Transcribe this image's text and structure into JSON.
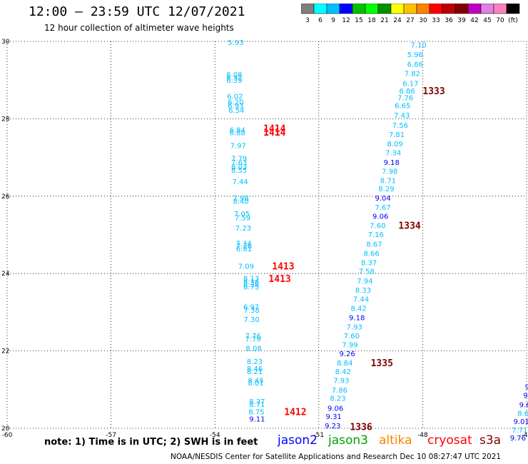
{
  "header": {
    "title": "12:00 – 23:59 UTC 12/07/2021",
    "subtitle": "12 hour collection of altimeter wave heights"
  },
  "legend": {
    "colors": [
      "#808080",
      "#00ffff",
      "#00bfff",
      "#0000ff",
      "#00c000",
      "#00ff00",
      "#009000",
      "#ffff00",
      "#ffc000",
      "#ff8000",
      "#ff0000",
      "#c00000",
      "#800000",
      "#c000c0",
      "#e080e0",
      "#ff80c0",
      "#000000"
    ],
    "labels": [
      "3",
      "6",
      "9",
      "12",
      "15",
      "18",
      "21",
      "24",
      "27",
      "30",
      "33",
      "36",
      "39",
      "42",
      "45",
      "70",
      "(ft)"
    ]
  },
  "map": {
    "x_ticks": [
      "-60",
      "-57",
      "-54",
      "-51",
      "-48",
      "-45"
    ],
    "y_ticks": [
      "30",
      "28",
      "26",
      "24",
      "22",
      "20"
    ],
    "xlim": [
      -60,
      -45
    ],
    "ylim": [
      20,
      30
    ]
  },
  "tracks": [
    {
      "points": [
        {
          "lon": -53.4,
          "lat": 29.98,
          "v": "5.93",
          "c": "#00bfff"
        },
        {
          "lon": -53.44,
          "lat": 29.15,
          "v": "6.08",
          "c": "#00bfff"
        },
        {
          "lon": -53.44,
          "lat": 29.07,
          "v": "6.37",
          "c": "#00bfff"
        },
        {
          "lon": -53.44,
          "lat": 29.0,
          "v": "6.39",
          "c": "#00bfff"
        },
        {
          "lon": -53.42,
          "lat": 28.59,
          "v": "6.02",
          "c": "#00bfff"
        },
        {
          "lon": -53.4,
          "lat": 28.44,
          "v": "6.20",
          "c": "#00bfff"
        },
        {
          "lon": -53.4,
          "lat": 28.35,
          "v": "6.93",
          "c": "#00bfff"
        },
        {
          "lon": -53.38,
          "lat": 28.23,
          "v": "6.54",
          "c": "#00bfff"
        },
        {
          "lon": -53.35,
          "lat": 27.72,
          "v": "6.84",
          "c": "#00bfff"
        },
        {
          "lon": -53.35,
          "lat": 27.65,
          "v": "6.88",
          "c": "#00bfff"
        },
        {
          "lon": -53.33,
          "lat": 27.32,
          "v": "7.97",
          "c": "#00bfff"
        },
        {
          "lon": -53.3,
          "lat": 26.98,
          "v": "7.79",
          "c": "#00bfff"
        },
        {
          "lon": -53.3,
          "lat": 26.88,
          "v": "7.63",
          "c": "#00bfff"
        },
        {
          "lon": -53.3,
          "lat": 26.77,
          "v": "8.03",
          "c": "#00bfff"
        },
        {
          "lon": -53.3,
          "lat": 26.68,
          "v": "8.55",
          "c": "#00bfff"
        },
        {
          "lon": -53.27,
          "lat": 26.38,
          "v": "7.44",
          "c": "#00bfff"
        },
        {
          "lon": -53.25,
          "lat": 25.96,
          "v": "7.98",
          "c": "#00bfff"
        },
        {
          "lon": -53.25,
          "lat": 25.88,
          "v": "8.40",
          "c": "#00bfff"
        },
        {
          "lon": -53.22,
          "lat": 25.55,
          "v": "7.05",
          "c": "#00bfff"
        },
        {
          "lon": -53.2,
          "lat": 25.45,
          "v": "7.59",
          "c": "#00bfff"
        },
        {
          "lon": -53.18,
          "lat": 25.18,
          "v": "7.23",
          "c": "#00bfff"
        },
        {
          "lon": -53.17,
          "lat": 24.79,
          "v": "7.34",
          "c": "#00bfff"
        },
        {
          "lon": -53.16,
          "lat": 24.72,
          "v": "7.26",
          "c": "#00bfff"
        },
        {
          "lon": -53.16,
          "lat": 24.65,
          "v": "6.81",
          "c": "#00bfff"
        },
        {
          "lon": -53.1,
          "lat": 24.2,
          "v": "7.09",
          "c": "#00bfff"
        },
        {
          "lon": -52.95,
          "lat": 23.88,
          "v": "8.13",
          "c": "#00bfff"
        },
        {
          "lon": -52.95,
          "lat": 23.79,
          "v": "8.36",
          "c": "#00bfff"
        },
        {
          "lon": -52.95,
          "lat": 23.73,
          "v": "8.38",
          "c": "#00bfff"
        },
        {
          "lon": -52.95,
          "lat": 23.66,
          "v": "6.75",
          "c": "#00bfff"
        },
        {
          "lon": -52.95,
          "lat": 23.15,
          "v": "6.97",
          "c": "#00bfff"
        },
        {
          "lon": -52.94,
          "lat": 23.06,
          "v": "7.38",
          "c": "#00bfff"
        },
        {
          "lon": -52.94,
          "lat": 22.82,
          "v": "7.30",
          "c": "#00bfff"
        },
        {
          "lon": -52.9,
          "lat": 22.4,
          "v": "7.76",
          "c": "#00bfff"
        },
        {
          "lon": -52.9,
          "lat": 22.32,
          "v": "7.79",
          "c": "#00bfff"
        },
        {
          "lon": -52.88,
          "lat": 22.08,
          "v": "8.08",
          "c": "#00bfff"
        },
        {
          "lon": -52.85,
          "lat": 21.73,
          "v": "8.23",
          "c": "#00bfff"
        },
        {
          "lon": -52.85,
          "lat": 21.55,
          "v": "8.46",
          "c": "#00bfff"
        },
        {
          "lon": -52.85,
          "lat": 21.48,
          "v": "8.21",
          "c": "#00bfff"
        },
        {
          "lon": -52.82,
          "lat": 21.25,
          "v": "8.45",
          "c": "#00bfff"
        },
        {
          "lon": -52.82,
          "lat": 21.18,
          "v": "8.01",
          "c": "#00bfff"
        },
        {
          "lon": -52.78,
          "lat": 20.7,
          "v": "8.37",
          "c": "#00bfff"
        },
        {
          "lon": -52.78,
          "lat": 20.63,
          "v": "8.71",
          "c": "#00bfff"
        },
        {
          "lon": -52.8,
          "lat": 20.43,
          "v": "8.75",
          "c": "#00bfff"
        },
        {
          "lon": -52.78,
          "lat": 20.25,
          "v": "9.11",
          "c": "#0000ff"
        }
      ]
    },
    {
      "points": [
        {
          "lon": -48.12,
          "lat": 29.92,
          "v": "7.10",
          "c": "#00bfff"
        },
        {
          "lon": -48.22,
          "lat": 29.67,
          "v": "5.96",
          "c": "#00bfff"
        },
        {
          "lon": -48.22,
          "lat": 29.42,
          "v": "6.86",
          "c": "#00bfff"
        },
        {
          "lon": -48.3,
          "lat": 29.18,
          "v": "7.82",
          "c": "#00bfff"
        },
        {
          "lon": -48.35,
          "lat": 28.92,
          "v": "6.17",
          "c": "#00bfff"
        },
        {
          "lon": -48.45,
          "lat": 28.73,
          "v": "6.86",
          "c": "#00bfff"
        },
        {
          "lon": -48.5,
          "lat": 28.55,
          "v": "7.76",
          "c": "#00bfff"
        },
        {
          "lon": -48.58,
          "lat": 28.35,
          "v": "6.65",
          "c": "#00bfff"
        },
        {
          "lon": -48.6,
          "lat": 28.1,
          "v": "7.43",
          "c": "#00bfff"
        },
        {
          "lon": -48.65,
          "lat": 27.84,
          "v": "7.56",
          "c": "#00bfff"
        },
        {
          "lon": -48.75,
          "lat": 27.6,
          "v": "7.81",
          "c": "#00bfff"
        },
        {
          "lon": -48.8,
          "lat": 27.36,
          "v": "8.09",
          "c": "#00bfff"
        },
        {
          "lon": -48.85,
          "lat": 27.13,
          "v": "7.34",
          "c": "#00bfff"
        },
        {
          "lon": -48.9,
          "lat": 26.88,
          "v": "9.18",
          "c": "#0000ff"
        },
        {
          "lon": -48.95,
          "lat": 26.65,
          "v": "7.98",
          "c": "#00bfff"
        },
        {
          "lon": -49.0,
          "lat": 26.41,
          "v": "8.71",
          "c": "#00bfff"
        },
        {
          "lon": -49.05,
          "lat": 26.2,
          "v": "8.29",
          "c": "#00bfff"
        },
        {
          "lon": -49.15,
          "lat": 25.96,
          "v": "9.04",
          "c": "#0000ff"
        },
        {
          "lon": -49.15,
          "lat": 25.72,
          "v": "7.67",
          "c": "#00bfff"
        },
        {
          "lon": -49.22,
          "lat": 25.49,
          "v": "9.06",
          "c": "#0000ff"
        },
        {
          "lon": -49.3,
          "lat": 25.25,
          "v": "7.60",
          "c": "#00bfff"
        },
        {
          "lon": -49.35,
          "lat": 25.02,
          "v": "7.16",
          "c": "#00bfff"
        },
        {
          "lon": -49.4,
          "lat": 24.77,
          "v": "8.67",
          "c": "#00bfff"
        },
        {
          "lon": -49.48,
          "lat": 24.53,
          "v": "8.66",
          "c": "#00bfff"
        },
        {
          "lon": -49.55,
          "lat": 24.29,
          "v": "8.37",
          "c": "#00bfff"
        },
        {
          "lon": -49.62,
          "lat": 24.07,
          "v": "7.58",
          "c": "#00bfff"
        },
        {
          "lon": -49.67,
          "lat": 23.82,
          "v": "7.94",
          "c": "#00bfff"
        },
        {
          "lon": -49.72,
          "lat": 23.58,
          "v": "8.33",
          "c": "#00bfff"
        },
        {
          "lon": -49.78,
          "lat": 23.35,
          "v": "7.44",
          "c": "#00bfff"
        },
        {
          "lon": -49.85,
          "lat": 23.11,
          "v": "8.42",
          "c": "#00bfff"
        },
        {
          "lon": -49.9,
          "lat": 22.87,
          "v": "9.18",
          "c": "#0000ff"
        },
        {
          "lon": -49.97,
          "lat": 22.63,
          "v": "7.93",
          "c": "#00bfff"
        },
        {
          "lon": -50.05,
          "lat": 22.4,
          "v": "7.60",
          "c": "#00bfff"
        },
        {
          "lon": -50.1,
          "lat": 22.17,
          "v": "7.99",
          "c": "#00bfff"
        },
        {
          "lon": -50.18,
          "lat": 21.94,
          "v": "9.26",
          "c": "#0000ff"
        },
        {
          "lon": -50.25,
          "lat": 21.7,
          "v": "8.84",
          "c": "#00bfff"
        },
        {
          "lon": -50.3,
          "lat": 21.48,
          "v": "8.42",
          "c": "#00bfff"
        },
        {
          "lon": -50.35,
          "lat": 21.25,
          "v": "7.93",
          "c": "#00bfff"
        },
        {
          "lon": -50.4,
          "lat": 21.0,
          "v": "7.86",
          "c": "#00bfff"
        },
        {
          "lon": -50.45,
          "lat": 20.78,
          "v": "8.23",
          "c": "#00bfff"
        },
        {
          "lon": -50.52,
          "lat": 20.53,
          "v": "9.06",
          "c": "#0000ff"
        },
        {
          "lon": -50.57,
          "lat": 20.31,
          "v": "9.31",
          "c": "#0000ff"
        },
        {
          "lon": -50.6,
          "lat": 20.07,
          "v": "9.23",
          "c": "#0000ff"
        }
      ]
    },
    {
      "points": [
        {
          "lon": -44.9,
          "lat": 21.32,
          "v": "8",
          "c": "#00bfff"
        },
        {
          "lon": -44.95,
          "lat": 21.08,
          "v": "9.",
          "c": "#0000ff"
        },
        {
          "lon": -45.0,
          "lat": 20.86,
          "v": "9.",
          "c": "#0000ff"
        },
        {
          "lon": -45.05,
          "lat": 20.62,
          "v": "9.6",
          "c": "#0000ff"
        },
        {
          "lon": -45.1,
          "lat": 20.4,
          "v": "8.6",
          "c": "#00bfff"
        },
        {
          "lon": -45.15,
          "lat": 20.18,
          "v": "9.01",
          "c": "#0000ff"
        },
        {
          "lon": -45.2,
          "lat": 19.96,
          "v": "7.71",
          "c": "#00bfff"
        },
        {
          "lon": -45.25,
          "lat": 19.76,
          "v": "9.76",
          "c": "#0000ff"
        }
      ]
    }
  ],
  "pass_labels": [
    {
      "text": "1414",
      "lon": -52.6,
      "lat": 27.76,
      "c": "#ff0000"
    },
    {
      "text": "1414",
      "lon": -52.6,
      "lat": 27.66,
      "c": "#ff0000"
    },
    {
      "text": "1413",
      "lon": -52.35,
      "lat": 24.2,
      "c": "#ff0000"
    },
    {
      "text": "1413",
      "lon": -52.45,
      "lat": 23.87,
      "c": "#ff0000"
    },
    {
      "text": "1412",
      "lon": -52.0,
      "lat": 20.43,
      "c": "#ff0000"
    },
    {
      "text": "1333",
      "lon": -48.0,
      "lat": 28.73,
      "c": "#800000"
    },
    {
      "text": "1334",
      "lon": -48.7,
      "lat": 25.25,
      "c": "#800000"
    },
    {
      "text": "1335",
      "lon": -49.5,
      "lat": 21.7,
      "c": "#800000"
    },
    {
      "text": "1336",
      "lon": -50.1,
      "lat": 20.05,
      "c": "#800000"
    }
  ],
  "footer": {
    "note": "note: 1) Time is in UTC; 2) SWH is in feet",
    "satellites": [
      {
        "label": "jason2",
        "color": "#0000ff"
      },
      {
        "label": "jason3",
        "color": "#00a000"
      },
      {
        "label": "altika",
        "color": "#ff8000"
      },
      {
        "label": "cryosat",
        "color": "#ff0000"
      },
      {
        "label": "s3a",
        "color": "#800000"
      }
    ],
    "credit": "NOAA/NESDIS Center for Satellite Applications and Research     Dec 10 08:27:47 UTC 2021"
  }
}
